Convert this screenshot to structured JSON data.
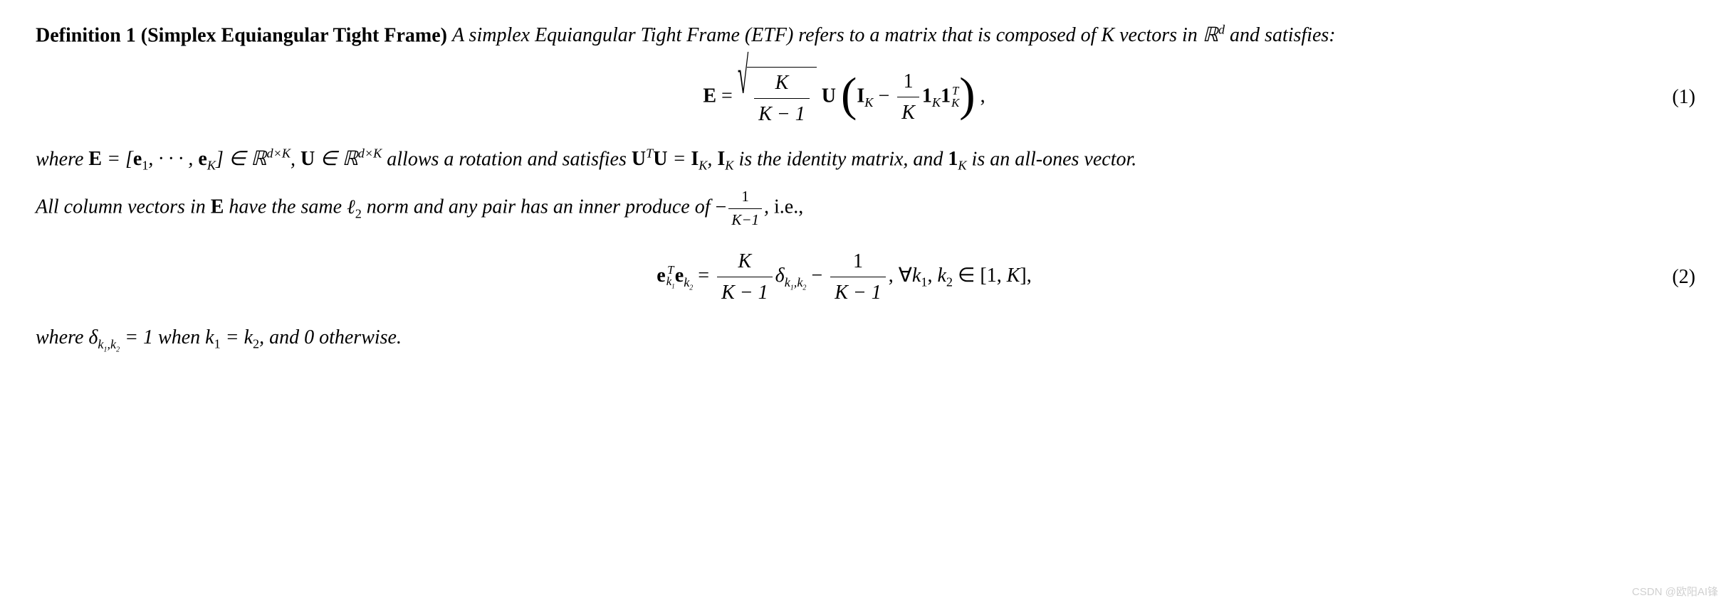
{
  "definition": {
    "label": "Definition 1 (Simplex Equiangular Tight Frame)",
    "intro_text": "A simplex Equiangular Tight Frame (ETF) refers to a matrix that is composed of K vectors in ℝ",
    "intro_sup": "d",
    "intro_tail": " and satisfies:"
  },
  "equation1": {
    "number": "(1)",
    "lhs": "E",
    "eq": " = ",
    "sqrt_num": "K",
    "sqrt_den": "K − 1",
    "U": "U",
    "I": "I",
    "I_sub": "K",
    "minus": " − ",
    "frac_num": "1",
    "frac_den": "K",
    "one": "1",
    "one_sub": "K",
    "one2": "1",
    "one2_sup": "T",
    "one2_sub": "K",
    "comma": ","
  },
  "where1": {
    "text_a": "where ",
    "E": "E",
    "eq1": " = [",
    "e1": "e",
    "e1_sub": "1",
    "dots": ", · · · , ",
    "eK": "e",
    "eK_sub": "K",
    "close": "] ∈ ",
    "R1": "ℝ",
    "R1_sup": "d×K",
    "comma1": ", ",
    "U": "U",
    "in2": " ∈ ",
    "R2": "ℝ",
    "R2_sup": "d×K",
    "text_b": " allows a rotation and satisfies ",
    "UT": "U",
    "UT_sup": "T",
    "U2": "U",
    "eq2": " = ",
    "I": "I",
    "I_sub": "K",
    "comma2": ", ",
    "I2": "I",
    "I2_sub": "K",
    "text_c": " is the identity matrix, and ",
    "one": "1",
    "one_sub": "K",
    "text_d": " is an all-ones vector."
  },
  "para2": {
    "text_a": "All column vectors in ",
    "E": "E",
    "text_b": " have the same ",
    "ell": "ℓ",
    "ell_sub": "2",
    "text_c": " norm and any pair has an inner produce of ",
    "minus": "−",
    "frac_num": "1",
    "frac_den": "K−1",
    "text_d": ", ",
    "ie": "i.e.,"
  },
  "equation2": {
    "number": "(2)",
    "e1": "e",
    "e1_sup": "T",
    "e1_sub": "k",
    "e1_subsub": "1",
    "e2": "e",
    "e2_sub": "k",
    "e2_subsub": "2",
    "eq": " = ",
    "frac1_num": "K",
    "frac1_den": "K − 1",
    "delta": "δ",
    "delta_sub": "k",
    "delta_sub1": "1",
    "delta_comma": ",",
    "delta_sub2": "k",
    "delta_sub2n": "2",
    "minus": " − ",
    "frac2_num": "1",
    "frac2_den": "K − 1",
    "comma": ",  ",
    "forall": "∀",
    "k1": "k",
    "k1_sub": "1",
    "c2": ", ",
    "k2": "k",
    "k2_sub": "2",
    "in": " ∈ [1, ",
    "K": "K",
    "close": "],"
  },
  "where2": {
    "text_a": "where ",
    "delta": "δ",
    "d_sub1": "k",
    "d_sub1n": "1",
    "d_comma": ",",
    "d_sub2": "k",
    "d_sub2n": "2",
    "eq": " = 1",
    "text_b": " when ",
    "k1": "k",
    "k1_sub": "1",
    "eq2": " = ",
    "k2": "k",
    "k2_sub": "2",
    "text_c": ", and 0 otherwise."
  },
  "watermark": "CSDN @欧阳AI锋",
  "styling": {
    "font_family": "Times New Roman",
    "font_size_pt": 21,
    "text_color": "#000000",
    "background_color": "#ffffff",
    "watermark_color": "#d0d0d0",
    "line_height": 1.4
  }
}
